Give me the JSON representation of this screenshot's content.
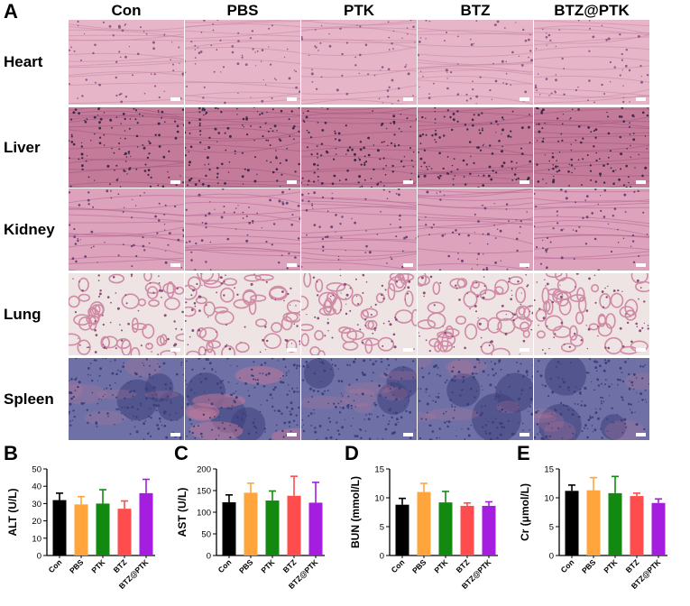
{
  "panelA": {
    "letter": "A",
    "columns": [
      "Con",
      "PBS",
      "PTK",
      "BTZ",
      "BTZ@PTK"
    ],
    "rows": [
      {
        "label": "Heart",
        "base": "#e6b6c8",
        "texture": "#c98aa7",
        "nuclei": "#8d5a86"
      },
      {
        "label": "Liver",
        "base": "#c47a99",
        "texture": "#a35a80",
        "nuclei": "#3d2a4a"
      },
      {
        "label": "Kidney",
        "base": "#dda3bd",
        "texture": "#b86a92",
        "nuclei": "#6d4576"
      },
      {
        "label": "Lung",
        "base": "#efe4e4",
        "texture": "#d08aa5",
        "nuclei": "#8a4e78"
      },
      {
        "label": "Spleen",
        "base": "#6e70a6",
        "texture": "#9c8ab8",
        "nuclei": "#3c3f7a"
      }
    ]
  },
  "panels": [
    {
      "letter": "B",
      "ylabel": "ALT (U/L)",
      "ylim": [
        0,
        50
      ],
      "ticks": [
        0,
        10,
        20,
        30,
        40,
        50
      ]
    },
    {
      "letter": "C",
      "ylabel": "AST (U/L)",
      "ylim": [
        0,
        200
      ],
      "ticks": [
        0,
        50,
        100,
        150,
        200
      ]
    },
    {
      "letter": "D",
      "ylabel": "BUN (mmol/L)",
      "ylim": [
        0,
        15
      ],
      "ticks": [
        0,
        5,
        10,
        15
      ]
    },
    {
      "letter": "E",
      "ylabel": "Cr (μmol/L)",
      "ylim": [
        0,
        15
      ],
      "ticks": [
        0,
        5,
        10,
        15
      ]
    }
  ],
  "chart_data": [
    {
      "type": "bar",
      "title": "",
      "xlabel": "",
      "ylabel": "ALT (U/L)",
      "ylim": [
        0,
        50
      ],
      "categories": [
        "Con",
        "PBS",
        "PTK",
        "BTZ",
        "BTZ@PTK"
      ],
      "values": [
        32,
        29.5,
        30,
        27,
        36
      ],
      "errors": [
        4,
        4.5,
        8,
        4.5,
        8
      ]
    },
    {
      "type": "bar",
      "title": "",
      "xlabel": "",
      "ylabel": "AST (U/L)",
      "ylim": [
        0,
        200
      ],
      "categories": [
        "Con",
        "PBS",
        "PTK",
        "BTZ",
        "BTZ@PTK"
      ],
      "values": [
        123,
        145,
        127,
        138,
        122
      ],
      "errors": [
        17,
        22,
        22,
        45,
        47
      ]
    },
    {
      "type": "bar",
      "title": "",
      "xlabel": "",
      "ylabel": "BUN (mmol/L)",
      "ylim": [
        0,
        15
      ],
      "categories": [
        "Con",
        "PBS",
        "PTK",
        "BTZ",
        "BTZ@PTK"
      ],
      "values": [
        8.8,
        11,
        9.2,
        8.6,
        8.6
      ],
      "errors": [
        1.1,
        1.5,
        1.9,
        0.5,
        0.7
      ]
    },
    {
      "type": "bar",
      "title": "",
      "xlabel": "",
      "ylabel": "Cr (μmol/L)",
      "ylim": [
        0,
        15
      ],
      "categories": [
        "Con",
        "PBS",
        "PTK",
        "BTZ",
        "BTZ@PTK"
      ],
      "values": [
        11.2,
        11.3,
        10.8,
        10.3,
        9.1
      ],
      "errors": [
        1.0,
        2.2,
        2.9,
        0.5,
        0.7
      ]
    }
  ],
  "colors": {
    "bars": [
      "#000000",
      "#ffa53c",
      "#128a12",
      "#ff4c4c",
      "#a51ee0"
    ]
  }
}
